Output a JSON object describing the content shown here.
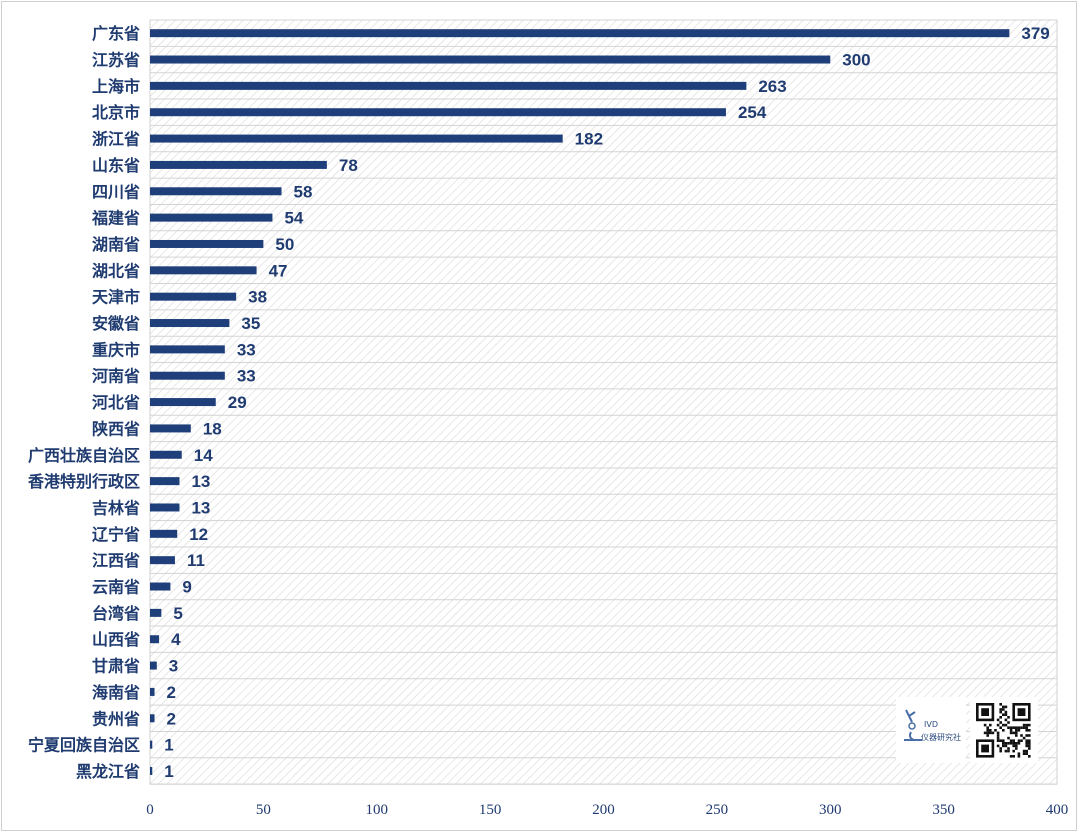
{
  "chart_data": {
    "type": "bar",
    "orientation": "horizontal",
    "categories": [
      "广东省",
      "江苏省",
      "上海市",
      "北京市",
      "浙江省",
      "山东省",
      "四川省",
      "福建省",
      "湖南省",
      "湖北省",
      "天津市",
      "安徽省",
      "重庆市",
      "河南省",
      "河北省",
      "陕西省",
      "广西壮族自治区",
      "香港特别行政区",
      "吉林省",
      "辽宁省",
      "江西省",
      "云南省",
      "台湾省",
      "山西省",
      "甘肃省",
      "海南省",
      "贵州省",
      "宁夏回族自治区",
      "黑龙江省"
    ],
    "values": [
      379,
      300,
      263,
      254,
      182,
      78,
      58,
      54,
      50,
      47,
      38,
      35,
      33,
      33,
      29,
      18,
      14,
      13,
      13,
      12,
      11,
      9,
      5,
      4,
      3,
      2,
      2,
      1,
      1
    ],
    "xlim": [
      0,
      400
    ],
    "xticks": [
      0,
      50,
      100,
      150,
      200,
      250,
      300,
      350,
      400
    ],
    "title": "",
    "xlabel": "",
    "ylabel": "",
    "data_labels": true,
    "grid": "horizontal row bands with diagonal hatch fill",
    "bar_color": "#1f3f7a",
    "label_color": "#1f3b70"
  },
  "watermark": {
    "brand_text": "IVD",
    "subtitle_text": "仪器研究社",
    "icon": "microscope-icon",
    "qr": "qr-code"
  }
}
